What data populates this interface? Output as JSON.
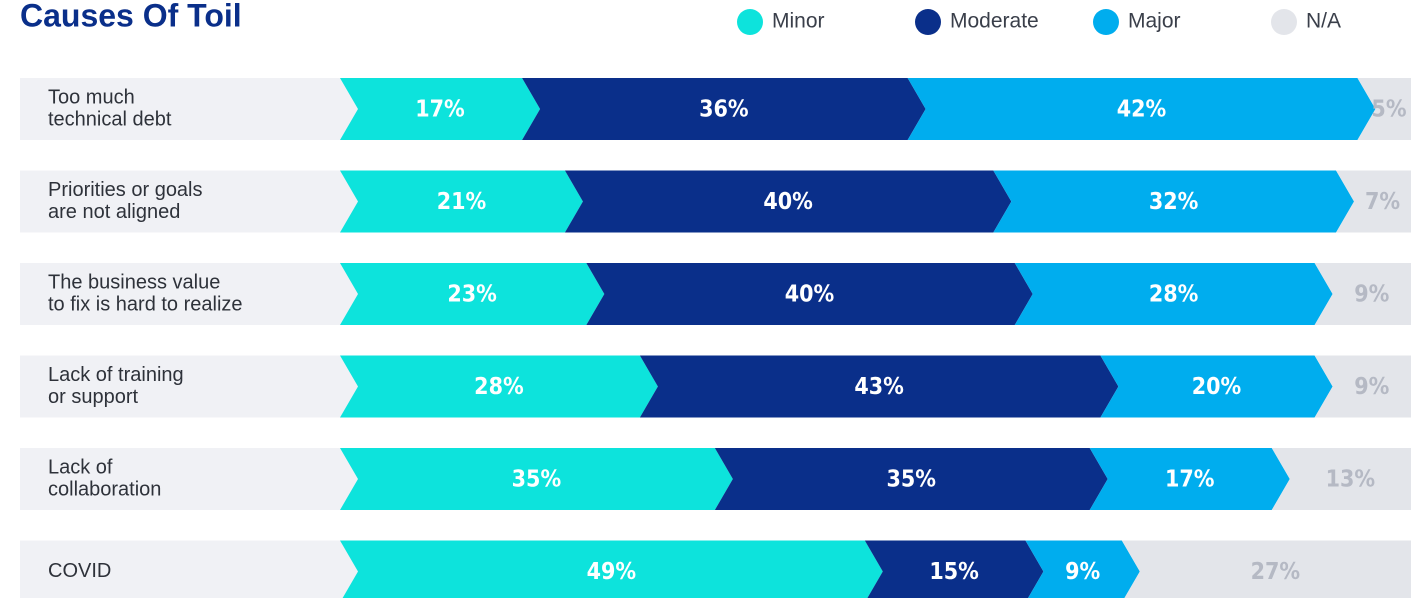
{
  "chart_data": {
    "type": "stacked-bar-horizontal",
    "title": "Causes Of Toil",
    "categories": [
      [
        "Too much",
        "technical debt"
      ],
      [
        "Priorities or goals",
        "are not aligned"
      ],
      [
        "The business value",
        "to fix is hard to realize"
      ],
      [
        "Lack of training",
        "or support"
      ],
      [
        "Lack of",
        "collaboration"
      ],
      [
        "COVID"
      ]
    ],
    "xlim": [
      0,
      100
    ],
    "series": [
      {
        "name": "Minor",
        "color": "#0de3dc",
        "label_color": "#ffffff",
        "values": [
          17,
          21,
          23,
          28,
          35,
          49
        ],
        "value_labels": [
          "17%",
          "21%",
          "23%",
          "28%",
          "35%",
          "49%"
        ]
      },
      {
        "name": "Moderate",
        "color": "#0a2f8a",
        "label_color": "#ffffff",
        "values": [
          36,
          40,
          40,
          43,
          35,
          15
        ],
        "value_labels": [
          "36%",
          "40%",
          "40%",
          "43%",
          "35%",
          "15%"
        ]
      },
      {
        "name": "Major",
        "color": "#00adee",
        "label_color": "#ffffff",
        "values": [
          42,
          32,
          28,
          20,
          17,
          9
        ],
        "value_labels": [
          "42%",
          "32%",
          "28%",
          "20%",
          "17%",
          "9%"
        ]
      },
      {
        "name": "N/A",
        "color": "#e3e5ea",
        "label_color": "#b5b9c4",
        "values": [
          5,
          7,
          9,
          9,
          13,
          27
        ],
        "value_labels": [
          "5%",
          "7%",
          "9%",
          "9%",
          "13%",
          "27%"
        ]
      }
    ]
  }
}
